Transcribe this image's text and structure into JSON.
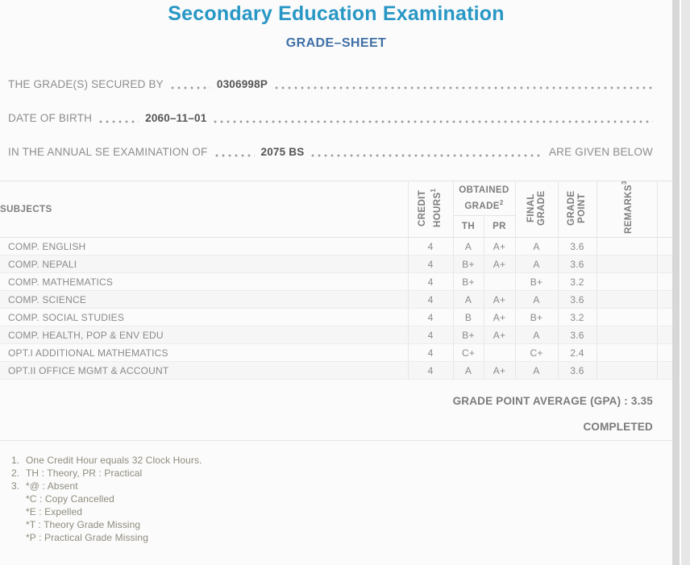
{
  "header": {
    "title": "Secondary Education Examination",
    "subtitle": "GRADE–SHEET",
    "title_color": "#2897c5",
    "subtitle_color": "#4070a6"
  },
  "student_lines": [
    {
      "label": "THE GRADE(S) SECURED BY",
      "value": "0306998P",
      "suffix": ""
    },
    {
      "label": "DATE OF BIRTH",
      "value": "2060–11–01",
      "suffix": ""
    },
    {
      "label": "IN THE ANNUAL SE EXAMINATION OF",
      "value": "2075 BS",
      "suffix": "ARE GIVEN BELOW"
    }
  ],
  "table": {
    "headers": {
      "subjects": "SUBJECTS",
      "credit_hours": "CREDIT HOURS",
      "credit_hours_sup": "1",
      "obtained_grade": "OBTAINED GRADE",
      "obtained_grade_sup": "2",
      "th": "TH",
      "pr": "PR",
      "final_grade": "FINAL GRADE",
      "grade_point": "GRADE POINT",
      "remarks": "REMARKS",
      "remarks_sup": "3"
    },
    "rows": [
      {
        "subject": "COMP. ENGLISH",
        "credit": "4",
        "th": "A",
        "pr": "A+",
        "final": "A",
        "point": "3.6",
        "remarks": ""
      },
      {
        "subject": "COMP. NEPALI",
        "credit": "4",
        "th": "B+",
        "pr": "A+",
        "final": "A",
        "point": "3.6",
        "remarks": ""
      },
      {
        "subject": "COMP. MATHEMATICS",
        "credit": "4",
        "th": "B+",
        "pr": "",
        "final": "B+",
        "point": "3.2",
        "remarks": ""
      },
      {
        "subject": "COMP. SCIENCE",
        "credit": "4",
        "th": "A",
        "pr": "A+",
        "final": "A",
        "point": "3.6",
        "remarks": ""
      },
      {
        "subject": "COMP. SOCIAL STUDIES",
        "credit": "4",
        "th": "B",
        "pr": "A+",
        "final": "B+",
        "point": "3.2",
        "remarks": ""
      },
      {
        "subject": "COMP. HEALTH, POP & ENV EDU",
        "credit": "4",
        "th": "B+",
        "pr": "A+",
        "final": "A",
        "point": "3.6",
        "remarks": ""
      },
      {
        "subject": "OPT.I ADDITIONAL MATHEMATICS",
        "credit": "4",
        "th": "C+",
        "pr": "",
        "final": "C+",
        "point": "2.4",
        "remarks": ""
      },
      {
        "subject": "OPT.II OFFICE MGMT & ACCOUNT",
        "credit": "4",
        "th": "A",
        "pr": "A+",
        "final": "A",
        "point": "3.6",
        "remarks": ""
      }
    ]
  },
  "summary": {
    "gpa_label": "GRADE POINT AVERAGE (GPA) :",
    "gpa_value": "3.35",
    "status": "COMPLETED"
  },
  "notes": [
    {
      "marker": "1.",
      "text": "One Credit Hour equals 32 Clock Hours."
    },
    {
      "marker": "2.",
      "text": "TH : Theory, PR : Practical"
    },
    {
      "marker": "3.",
      "text": "*@ : Absent"
    },
    {
      "marker": "",
      "text": "*C : Copy Cancelled"
    },
    {
      "marker": "",
      "text": "*E : Expelled"
    },
    {
      "marker": "",
      "text": "*T : Theory Grade Missing"
    },
    {
      "marker": "",
      "text": "*P : Practical Grade Missing"
    }
  ]
}
